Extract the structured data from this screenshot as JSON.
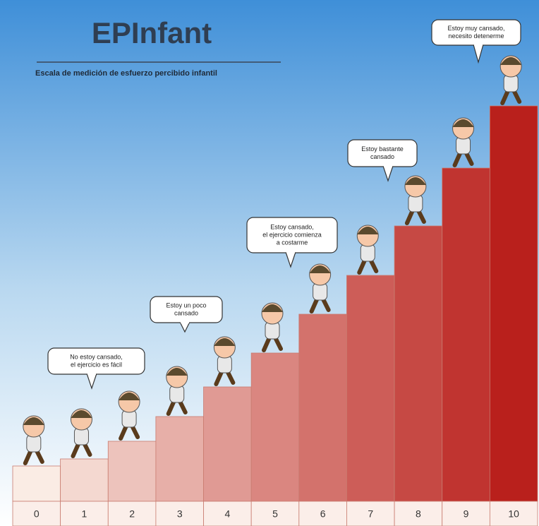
{
  "header": {
    "title": "EPInfant",
    "subtitle": "Escala de medición de esfuerzo percibido infantil"
  },
  "steps": [
    0,
    1,
    2,
    3,
    4,
    5,
    6,
    7,
    8,
    9,
    10
  ],
  "bubbles": [
    {
      "lines": [
        "No estoy cansado,",
        "el ejercicio es fácil"
      ]
    },
    {
      "lines": [
        "Estoy un poco",
        "cansado"
      ]
    },
    {
      "lines": [
        "Estoy cansado,",
        "el ejercicio comienza",
        "a costarme"
      ]
    },
    {
      "lines": [
        "Estoy bastante",
        "cansado"
      ]
    },
    {
      "lines": [
        "Estoy muy cansado,",
        "necesito detenerme"
      ]
    }
  ]
}
